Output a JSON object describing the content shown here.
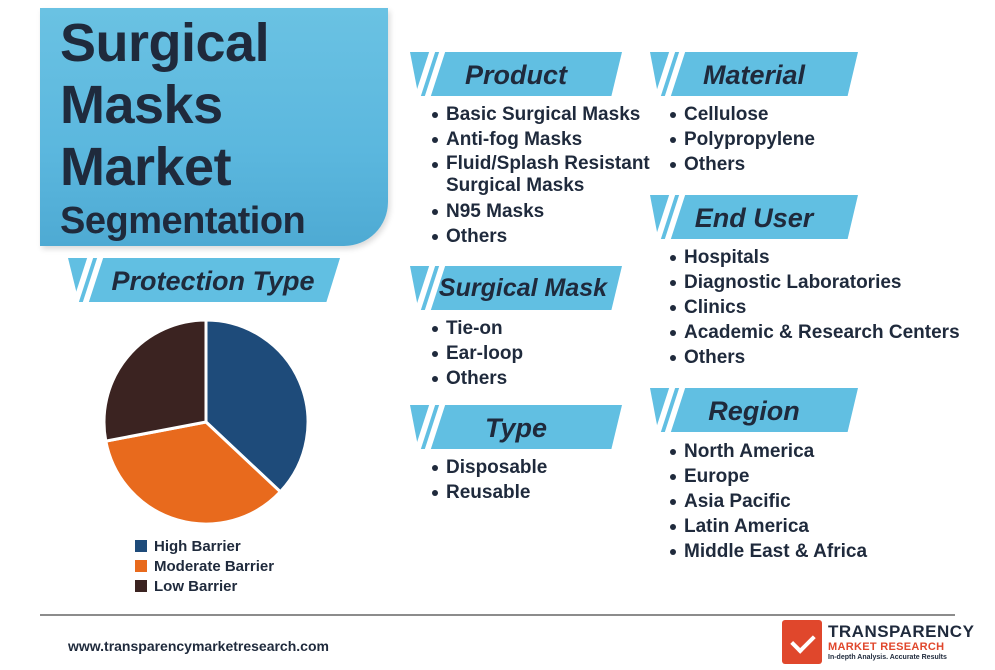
{
  "title": {
    "line1": "Surgical",
    "line2": "Masks",
    "line3": "Market",
    "line4": "Segmentation"
  },
  "protection_type": {
    "heading": "Protection Type",
    "legend": [
      {
        "label": "High Barrier",
        "color": "#1e4b7a"
      },
      {
        "label": "Moderate Barrier",
        "color": "#e86a1d"
      },
      {
        "label": "Low Barrier",
        "color": "#3b2321"
      }
    ]
  },
  "segments": {
    "product": {
      "heading": "Product",
      "items": [
        "Basic Surgical Masks",
        "Anti-fog Masks",
        "Fluid/Splash Resistant",
        "Surgical Masks",
        "N95 Masks",
        "Others"
      ]
    },
    "surgical_mask": {
      "heading": "Surgical Mask",
      "items": [
        "Tie-on",
        "Ear-loop",
        "Others"
      ]
    },
    "type": {
      "heading": "Type",
      "items": [
        "Disposable",
        "Reusable"
      ]
    },
    "material": {
      "heading": "Material",
      "items": [
        "Cellulose",
        "Polypropylene",
        "Others"
      ]
    },
    "end_user": {
      "heading": "End User",
      "items": [
        "Hospitals",
        "Diagnostic Laboratories",
        "Clinics",
        "Academic & Research Centers",
        "Others"
      ]
    },
    "region": {
      "heading": "Region",
      "items": [
        "North America",
        "Europe",
        "Asia Pacific",
        "Latin America",
        "Middle East & Africa"
      ]
    }
  },
  "chart_data": {
    "type": "pie",
    "title": "Protection Type",
    "categories": [
      "High Barrier",
      "Moderate Barrier",
      "Low Barrier"
    ],
    "values": [
      37,
      35,
      28
    ],
    "colors": [
      "#1e4b7a",
      "#e86a1d",
      "#3b2321"
    ],
    "legend_position": "bottom"
  },
  "footer": {
    "url": "www.transparencymarketresearch.com",
    "logo_name": "TRANSPARENCY",
    "logo_sub": "MARKET RESEARCH",
    "logo_tagline": "In-depth Analysis. Accurate Results"
  },
  "colors": {
    "accent_blue": "#61bfe2",
    "text_dark": "#1f2a3c"
  }
}
